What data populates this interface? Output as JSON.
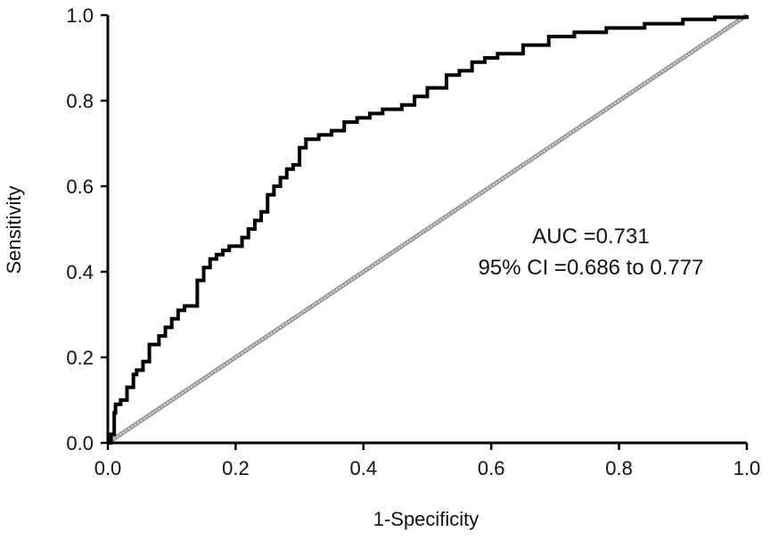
{
  "chart_data": {
    "type": "line",
    "title": "",
    "xlabel": "1-Specificity",
    "ylabel": "Sensitivity",
    "xlim": [
      0.0,
      1.0
    ],
    "ylim": [
      0.0,
      1.0
    ],
    "xticks": [
      "0.0",
      "0.2",
      "0.4",
      "0.6",
      "0.8",
      "1.0"
    ],
    "yticks": [
      "0.0",
      "0.2",
      "0.4",
      "0.6",
      "0.8",
      "1.0"
    ],
    "grid": false,
    "annotations": [
      "AUC =0.731",
      "95% CI =0.686 to 0.777"
    ],
    "series": [
      {
        "style": "solid-black",
        "x": [
          0.0,
          0.005,
          0.01,
          0.012,
          0.02,
          0.03,
          0.04,
          0.045,
          0.055,
          0.065,
          0.07,
          0.08,
          0.09,
          0.1,
          0.11,
          0.12,
          0.14,
          0.15,
          0.16,
          0.17,
          0.18,
          0.19,
          0.21,
          0.22,
          0.23,
          0.24,
          0.25,
          0.26,
          0.27,
          0.28,
          0.29,
          0.3,
          0.31,
          0.33,
          0.35,
          0.37,
          0.39,
          0.41,
          0.43,
          0.46,
          0.48,
          0.5,
          0.53,
          0.55,
          0.57,
          0.59,
          0.61,
          0.65,
          0.69,
          0.73,
          0.78,
          0.84,
          0.9,
          0.95,
          1.0
        ],
        "y": [
          0.0,
          0.02,
          0.07,
          0.09,
          0.1,
          0.13,
          0.16,
          0.17,
          0.19,
          0.23,
          0.23,
          0.25,
          0.27,
          0.29,
          0.31,
          0.32,
          0.38,
          0.41,
          0.43,
          0.44,
          0.45,
          0.46,
          0.48,
          0.5,
          0.52,
          0.54,
          0.58,
          0.6,
          0.62,
          0.64,
          0.65,
          0.69,
          0.71,
          0.72,
          0.73,
          0.75,
          0.76,
          0.77,
          0.78,
          0.79,
          0.81,
          0.83,
          0.86,
          0.87,
          0.89,
          0.9,
          0.91,
          0.93,
          0.95,
          0.96,
          0.97,
          0.98,
          0.99,
          0.995,
          1.0
        ]
      },
      {
        "style": "reference-diagonal",
        "x": [
          0.0,
          1.0
        ],
        "y": [
          0.0,
          1.0
        ]
      }
    ]
  }
}
